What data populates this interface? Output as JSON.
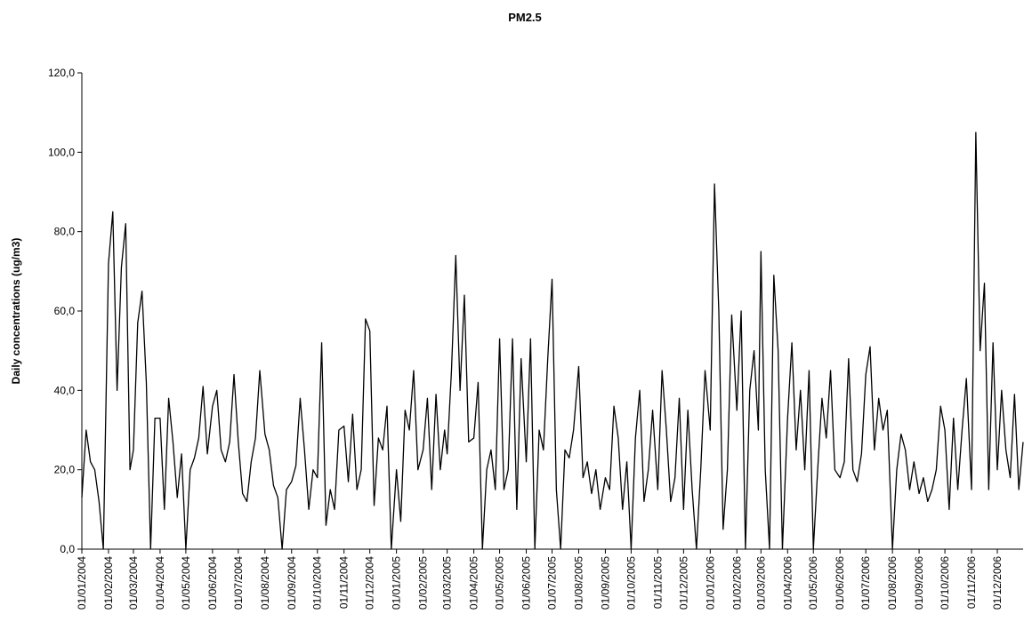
{
  "chart_data": {
    "type": "line",
    "title": "PM2.5",
    "y_label": "Daily concentrations (ug/m3)",
    "color": "#000000",
    "grid": false,
    "xlim": [
      "01/01/2004",
      "31/12/2006"
    ],
    "ylim": [
      0,
      120
    ],
    "yticks": [
      {
        "value": 0,
        "label": "0,0"
      },
      {
        "value": 20,
        "label": "20,0"
      },
      {
        "value": 40,
        "label": "40,0"
      },
      {
        "value": 60,
        "label": "60,0"
      },
      {
        "value": 80,
        "label": "80,0"
      },
      {
        "value": 100,
        "label": "100,0"
      },
      {
        "value": 120,
        "label": "120,0"
      }
    ],
    "xticks": [
      "01/01/2004",
      "01/02/2004",
      "01/03/2004",
      "01/04/2004",
      "01/05/2004",
      "01/06/2004",
      "01/07/2004",
      "01/08/2004",
      "01/09/2004",
      "01/10/2004",
      "01/11/2004",
      "01/12/2004",
      "01/01/2005",
      "01/02/2005",
      "01/03/2005",
      "01/04/2005",
      "01/05/2005",
      "01/06/2005",
      "01/07/2005",
      "01/08/2005",
      "01/09/2005",
      "01/10/2005",
      "01/11/2005",
      "01/12/2005",
      "01/01/2006",
      "01/02/2006",
      "01/03/2006",
      "01/04/2006",
      "01/05/2006",
      "01/06/2006",
      "01/07/2006",
      "01/08/2006",
      "01/09/2006",
      "01/10/2006",
      "01/11/2006",
      "01/12/2006"
    ],
    "x": [
      "01/01/2004",
      "06/01/2004",
      "11/01/2004",
      "16/01/2004",
      "21/01/2004",
      "26/01/2004",
      "01/02/2004",
      "06/02/2004",
      "11/02/2004",
      "16/02/2004",
      "21/02/2004",
      "26/02/2004",
      "01/03/2004",
      "06/03/2004",
      "11/03/2004",
      "16/03/2004",
      "21/03/2004",
      "26/03/2004",
      "01/04/2004",
      "06/04/2004",
      "11/04/2004",
      "16/04/2004",
      "21/04/2004",
      "26/04/2004",
      "01/05/2004",
      "06/05/2004",
      "11/05/2004",
      "16/05/2004",
      "21/05/2004",
      "26/05/2004",
      "01/06/2004",
      "06/06/2004",
      "11/06/2004",
      "16/06/2004",
      "21/06/2004",
      "26/06/2004",
      "01/07/2004",
      "06/07/2004",
      "11/07/2004",
      "16/07/2004",
      "21/07/2004",
      "26/07/2004",
      "01/08/2004",
      "06/08/2004",
      "11/08/2004",
      "16/08/2004",
      "21/08/2004",
      "26/08/2004",
      "01/09/2004",
      "06/09/2004",
      "11/09/2004",
      "16/09/2004",
      "21/09/2004",
      "26/09/2004",
      "01/10/2004",
      "06/10/2004",
      "11/10/2004",
      "16/10/2004",
      "21/10/2004",
      "26/10/2004",
      "01/11/2004",
      "06/11/2004",
      "11/11/2004",
      "16/11/2004",
      "21/11/2004",
      "26/11/2004",
      "01/12/2004",
      "06/12/2004",
      "11/12/2004",
      "16/12/2004",
      "21/12/2004",
      "26/12/2004",
      "01/01/2005",
      "06/01/2005",
      "11/01/2005",
      "16/01/2005",
      "21/01/2005",
      "26/01/2005",
      "01/02/2005",
      "06/02/2005",
      "11/02/2005",
      "16/02/2005",
      "21/02/2005",
      "26/02/2005",
      "01/03/2005",
      "06/03/2005",
      "11/03/2005",
      "16/03/2005",
      "21/03/2005",
      "26/03/2005",
      "01/04/2005",
      "06/04/2005",
      "11/04/2005",
      "16/04/2005",
      "21/04/2005",
      "26/04/2005",
      "01/05/2005",
      "06/05/2005",
      "11/05/2005",
      "16/05/2005",
      "21/05/2005",
      "26/05/2005",
      "01/06/2005",
      "06/06/2005",
      "11/06/2005",
      "16/06/2005",
      "21/06/2005",
      "26/06/2005",
      "01/07/2005",
      "06/07/2005",
      "11/07/2005",
      "16/07/2005",
      "21/07/2005",
      "26/07/2005",
      "01/08/2005",
      "06/08/2005",
      "11/08/2005",
      "16/08/2005",
      "21/08/2005",
      "26/08/2005",
      "01/09/2005",
      "06/09/2005",
      "11/09/2005",
      "16/09/2005",
      "21/09/2005",
      "26/09/2005",
      "01/10/2005",
      "06/10/2005",
      "11/10/2005",
      "16/10/2005",
      "21/10/2005",
      "26/10/2005",
      "01/11/2005",
      "06/11/2005",
      "11/11/2005",
      "16/11/2005",
      "21/11/2005",
      "26/11/2005",
      "01/12/2005",
      "06/12/2005",
      "11/12/2005",
      "16/12/2005",
      "21/12/2005",
      "26/12/2005",
      "01/01/2006",
      "06/01/2006",
      "11/01/2006",
      "16/01/2006",
      "21/01/2006",
      "26/01/2006",
      "01/02/2006",
      "06/02/2006",
      "11/02/2006",
      "16/02/2006",
      "21/02/2006",
      "26/02/2006",
      "01/03/2006",
      "06/03/2006",
      "11/03/2006",
      "16/03/2006",
      "21/03/2006",
      "26/03/2006",
      "01/04/2006",
      "06/04/2006",
      "11/04/2006",
      "16/04/2006",
      "21/04/2006",
      "26/04/2006",
      "01/05/2006",
      "06/05/2006",
      "11/05/2006",
      "16/05/2006",
      "21/05/2006",
      "26/05/2006",
      "01/06/2006",
      "06/06/2006",
      "11/06/2006",
      "16/06/2006",
      "21/06/2006",
      "26/06/2006",
      "01/07/2006",
      "06/07/2006",
      "11/07/2006",
      "16/07/2006",
      "21/07/2006",
      "26/07/2006",
      "01/08/2006",
      "06/08/2006",
      "11/08/2006",
      "16/08/2006",
      "21/08/2006",
      "26/08/2006",
      "01/09/2006",
      "06/09/2006",
      "11/09/2006",
      "16/09/2006",
      "21/09/2006",
      "26/09/2006",
      "01/10/2006",
      "06/10/2006",
      "11/10/2006",
      "16/10/2006",
      "21/10/2006",
      "26/10/2006",
      "01/11/2006",
      "06/11/2006",
      "11/11/2006",
      "16/11/2006",
      "21/11/2006",
      "26/11/2006",
      "01/12/2006",
      "06/12/2006",
      "11/12/2006",
      "16/12/2006",
      "21/12/2006",
      "26/12/2006",
      "31/12/2006"
    ],
    "values": [
      13,
      30,
      22,
      20,
      12,
      0,
      72,
      85,
      40,
      71,
      82,
      20,
      25,
      57,
      65,
      42,
      0,
      33,
      33,
      10,
      38,
      27,
      13,
      24,
      0,
      20,
      23,
      28,
      41,
      24,
      36,
      40,
      25,
      22,
      27,
      44,
      27,
      14,
      12,
      22,
      28,
      45,
      29,
      25,
      16,
      13,
      0,
      15,
      17,
      21,
      38,
      25,
      10,
      20,
      18,
      52,
      6,
      15,
      10,
      30,
      31,
      17,
      34,
      15,
      20,
      58,
      55,
      11,
      28,
      25,
      36,
      0,
      20,
      7,
      35,
      30,
      45,
      20,
      25,
      38,
      15,
      39,
      20,
      30,
      24,
      45,
      74,
      40,
      64,
      27,
      28,
      42,
      0,
      20,
      25,
      15,
      53,
      15,
      20,
      53,
      10,
      48,
      22,
      53,
      0,
      30,
      25,
      48,
      68,
      15,
      0,
      25,
      23,
      30,
      46,
      18,
      22,
      14,
      20,
      10,
      18,
      15,
      36,
      28,
      10,
      22,
      0,
      28,
      40,
      12,
      20,
      35,
      15,
      45,
      30,
      12,
      18,
      38,
      10,
      35,
      15,
      0,
      20,
      45,
      30,
      92,
      60,
      5,
      20,
      59,
      35,
      60,
      0,
      40,
      50,
      30,
      75,
      20,
      0,
      69,
      50,
      0,
      33,
      52,
      25,
      40,
      20,
      45,
      0,
      20,
      38,
      28,
      45,
      20,
      18,
      22,
      48,
      20,
      17,
      24,
      44,
      51,
      25,
      38,
      30,
      35,
      0,
      20,
      29,
      25,
      15,
      22,
      14,
      18,
      12,
      15,
      20,
      36,
      30,
      10,
      33,
      15,
      30,
      43,
      15,
      105,
      50,
      67,
      15,
      52,
      20,
      40,
      25,
      18,
      39,
      15,
      27
    ]
  }
}
